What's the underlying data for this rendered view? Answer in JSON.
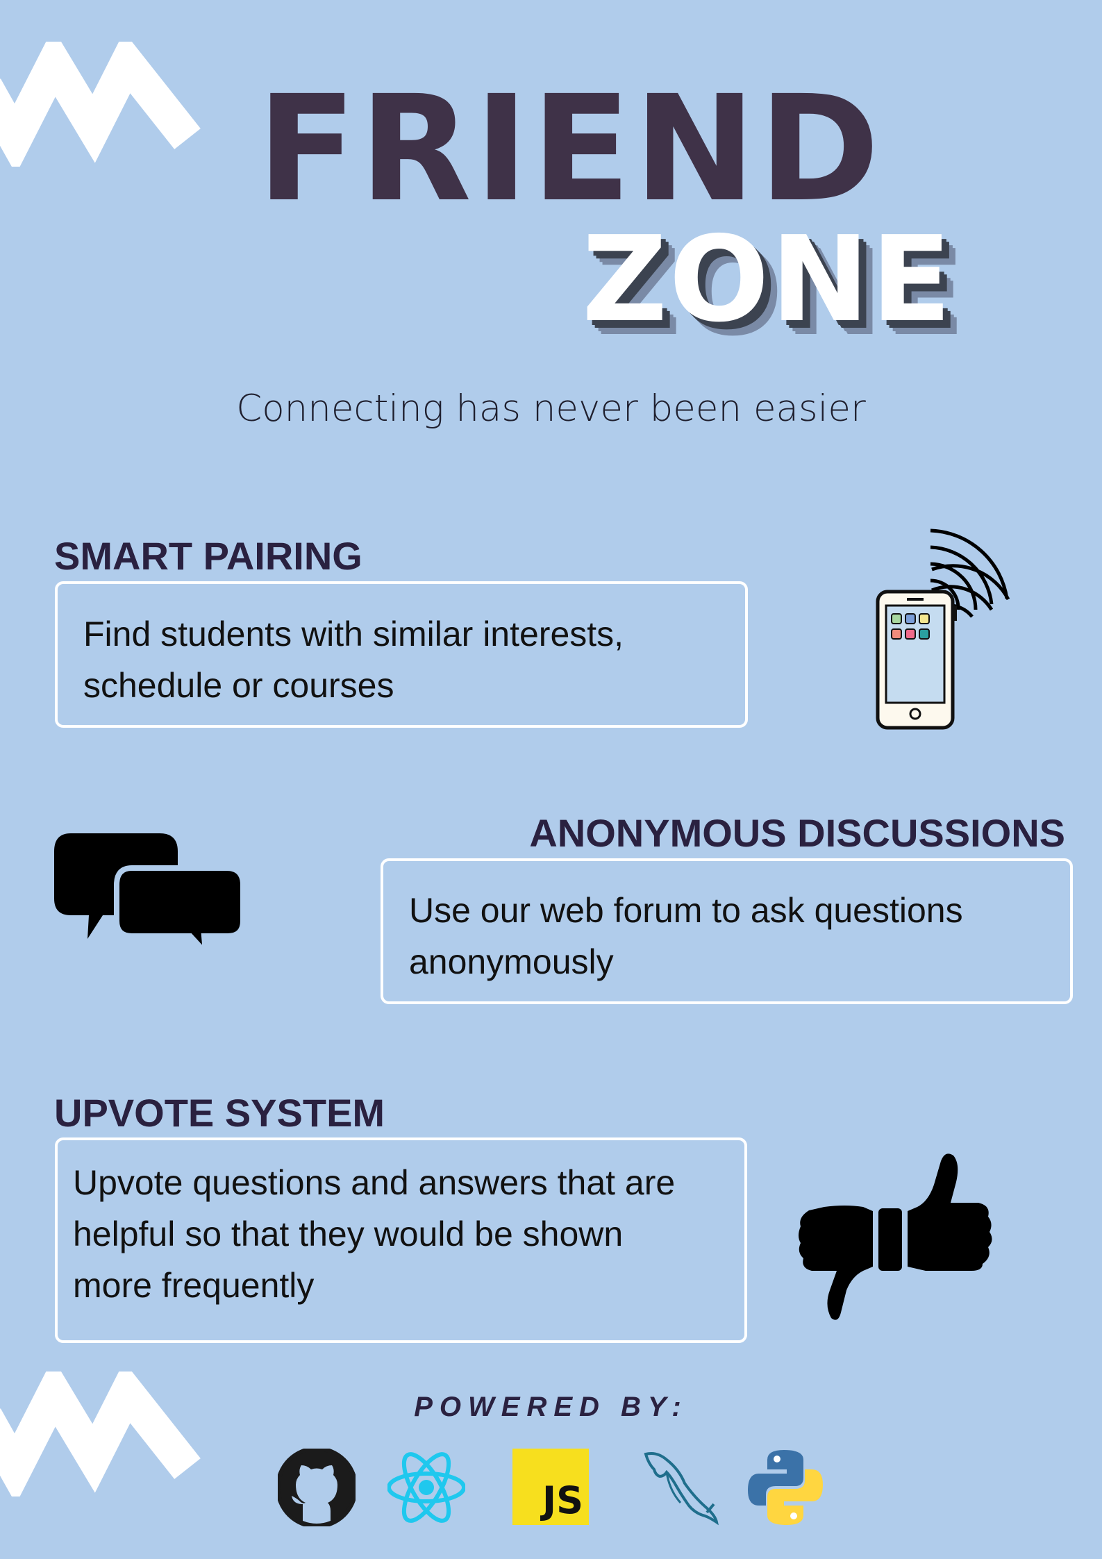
{
  "title": {
    "line1": "FRIEND",
    "line2": "ZONE"
  },
  "tagline": "Connecting has never been easier",
  "features": [
    {
      "heading": "SMART PAIRING",
      "line1": "Find students with similar interests,",
      "line2": "schedule or courses",
      "icon": "smartphone-icon"
    },
    {
      "heading": "ANONYMOUS DISCUSSIONS",
      "line1": "Use our web forum to ask questions",
      "line2": "anonymously",
      "icon": "chat-bubbles-icon"
    },
    {
      "heading": "UPVOTE SYSTEM",
      "line1": "Upvote questions and answers that are",
      "line2": "helpful so that they would be shown",
      "line3": "more frequently",
      "icon": "thumbs-up-down-icon"
    }
  ],
  "powered_by": {
    "label": "POWERED BY:",
    "icons": [
      "github-icon",
      "react-icon",
      "javascript-icon",
      "mysql-icon",
      "python-icon"
    ],
    "js_text": "JS"
  },
  "colors": {
    "background": "#b0cceb",
    "title_dark": "#3f3248",
    "heading": "#2a2140",
    "box_border": "#ffffff",
    "react": "#1fc8ee",
    "js_yellow": "#f7df1e",
    "mysql": "#1f6e8c",
    "python_blue": "#3b72a8",
    "python_yellow": "#ffd640"
  }
}
